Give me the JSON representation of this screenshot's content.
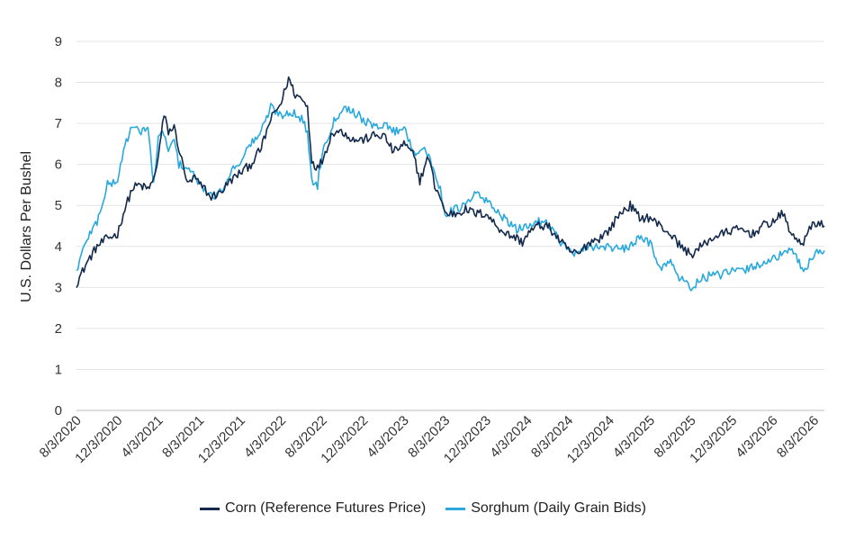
{
  "chart_data": {
    "type": "line",
    "title": "",
    "xlabel": "",
    "ylabel": "U.S. Dollars Per Bushel",
    "ylim": [
      0,
      9
    ],
    "yticks": [
      "0",
      "1",
      "2",
      "3",
      "4",
      "5",
      "6",
      "7",
      "8",
      "9"
    ],
    "xticks": [
      "8/3/2020",
      "12/3/2020",
      "4/3/2021",
      "8/3/2021",
      "12/3/2021",
      "4/3/2022",
      "8/3/2022",
      "12/3/2022",
      "4/3/2023",
      "8/3/2023",
      "12/3/2023",
      "4/3/2024",
      "8/3/2024",
      "12/3/2024",
      "4/3/2025",
      "8/3/2025",
      "12/3/2025",
      "4/3/2026",
      "8/3/2026"
    ],
    "x_range": [
      "8/3/2020",
      "9/3/2026"
    ],
    "grid": true,
    "legend_position": "bottom",
    "series": [
      {
        "name": "Corn (Reference Futures Price)",
        "color": "#13294b",
        "points": [
          [
            "8/3/2020",
            3.1
          ],
          [
            "9/3/2020",
            3.6
          ],
          [
            "10/3/2020",
            4.0
          ],
          [
            "11/3/2020",
            4.2
          ],
          [
            "12/3/2020",
            4.3
          ],
          [
            "12/20/2020",
            4.8
          ],
          [
            "1/15/2021",
            5.4
          ],
          [
            "2/3/2021",
            5.5
          ],
          [
            "3/3/2021",
            5.4
          ],
          [
            "3/20/2021",
            5.6
          ],
          [
            "4/3/2021",
            6.2
          ],
          [
            "4/20/2021",
            7.2
          ],
          [
            "5/3/2021",
            6.8
          ],
          [
            "5/20/2021",
            6.9
          ],
          [
            "6/3/2021",
            6.4
          ],
          [
            "6/20/2021",
            5.8
          ],
          [
            "7/3/2021",
            5.5
          ],
          [
            "7/20/2021",
            5.7
          ],
          [
            "8/3/2021",
            5.5
          ],
          [
            "8/20/2021",
            5.4
          ],
          [
            "9/3/2021",
            5.2
          ],
          [
            "10/3/2021",
            5.3
          ],
          [
            "11/3/2021",
            5.6
          ],
          [
            "12/3/2021",
            5.8
          ],
          [
            "1/3/2022",
            6.0
          ],
          [
            "2/3/2022",
            6.4
          ],
          [
            "3/3/2022",
            7.1
          ],
          [
            "4/3/2022",
            7.5
          ],
          [
            "4/25/2022",
            8.1
          ],
          [
            "5/15/2022",
            7.7
          ],
          [
            "6/3/2022",
            7.6
          ],
          [
            "6/20/2022",
            7.4
          ],
          [
            "7/3/2022",
            6.1
          ],
          [
            "7/20/2022",
            5.9
          ],
          [
            "8/3/2022",
            6.1
          ],
          [
            "9/3/2022",
            6.8
          ],
          [
            "10/3/2022",
            6.8
          ],
          [
            "11/3/2022",
            6.6
          ],
          [
            "12/3/2022",
            6.6
          ],
          [
            "1/3/2023",
            6.7
          ],
          [
            "2/3/2023",
            6.7
          ],
          [
            "3/3/2023",
            6.3
          ],
          [
            "4/3/2023",
            6.5
          ],
          [
            "5/3/2023",
            6.2
          ],
          [
            "5/20/2023",
            5.6
          ],
          [
            "6/15/2023",
            6.2
          ],
          [
            "7/3/2023",
            5.5
          ],
          [
            "7/20/2023",
            5.2
          ],
          [
            "8/3/2023",
            4.8
          ],
          [
            "9/3/2023",
            4.8
          ],
          [
            "10/3/2023",
            4.9
          ],
          [
            "11/3/2023",
            4.8
          ],
          [
            "12/3/2023",
            4.8
          ],
          [
            "1/3/2024",
            4.5
          ],
          [
            "2/3/2024",
            4.3
          ],
          [
            "3/3/2024",
            4.2
          ],
          [
            "3/20/2024",
            4.1
          ],
          [
            "4/3/2024",
            4.3
          ],
          [
            "5/3/2024",
            4.5
          ],
          [
            "6/3/2024",
            4.5
          ],
          [
            "7/3/2024",
            4.2
          ],
          [
            "8/3/2024",
            3.9
          ],
          [
            "9/3/2024",
            3.8
          ],
          [
            "10/3/2024",
            4.1
          ],
          [
            "11/3/2024",
            4.2
          ],
          [
            "12/3/2024",
            4.4
          ],
          [
            "1/3/2025",
            4.8
          ],
          [
            "2/3/2025",
            5.0
          ],
          [
            "3/3/2025",
            4.7
          ],
          [
            "4/3/2025",
            4.7
          ],
          [
            "5/3/2025",
            4.5
          ],
          [
            "6/3/2025",
            4.3
          ],
          [
            "7/3/2025",
            4.0
          ],
          [
            "8/3/2025",
            3.8
          ],
          [
            "9/3/2025",
            4.0
          ],
          [
            "10/3/2025",
            4.2
          ],
          [
            "11/3/2025",
            4.3
          ],
          [
            "12/3/2025",
            4.4
          ],
          [
            "1/3/2026",
            4.4
          ],
          [
            "2/3/2026",
            4.3
          ],
          [
            "3/3/2026",
            4.5
          ],
          [
            "4/3/2026",
            4.6
          ],
          [
            "5/3/2026",
            4.8
          ],
          [
            "6/3/2026",
            4.2
          ],
          [
            "7/3/2026",
            4.1
          ],
          [
            "8/3/2026",
            4.6
          ],
          [
            "9/3/2026",
            4.5
          ]
        ]
      },
      {
        "name": "Sorghum (Daily Grain Bids)",
        "color": "#29a8de",
        "points": [
          [
            "8/3/2020",
            3.4
          ],
          [
            "9/3/2020",
            4.2
          ],
          [
            "10/3/2020",
            4.6
          ],
          [
            "11/3/2020",
            5.5
          ],
          [
            "12/3/2020",
            5.6
          ],
          [
            "12/25/2020",
            6.5
          ],
          [
            "1/15/2021",
            6.9
          ],
          [
            "2/3/2021",
            6.8
          ],
          [
            "3/3/2021",
            6.9
          ],
          [
            "3/20/2021",
            5.5
          ],
          [
            "4/3/2021",
            6.6
          ],
          [
            "4/20/2021",
            6.8
          ],
          [
            "5/3/2021",
            6.3
          ],
          [
            "5/20/2021",
            6.6
          ],
          [
            "6/3/2021",
            6.0
          ],
          [
            "7/3/2021",
            5.9
          ],
          [
            "8/3/2021",
            5.5
          ],
          [
            "8/20/2021",
            5.4
          ],
          [
            "9/3/2021",
            5.2
          ],
          [
            "10/3/2021",
            5.3
          ],
          [
            "11/3/2021",
            5.8
          ],
          [
            "12/3/2021",
            6.1
          ],
          [
            "1/3/2022",
            6.5
          ],
          [
            "2/3/2022",
            6.8
          ],
          [
            "3/3/2022",
            7.4
          ],
          [
            "4/3/2022",
            7.2
          ],
          [
            "5/3/2022",
            7.3
          ],
          [
            "6/3/2022",
            7.1
          ],
          [
            "6/20/2022",
            6.8
          ],
          [
            "7/3/2022",
            5.6
          ],
          [
            "7/20/2022",
            5.5
          ],
          [
            "8/3/2022",
            6.3
          ],
          [
            "9/3/2022",
            7.0
          ],
          [
            "10/3/2022",
            7.4
          ],
          [
            "11/3/2022",
            7.3
          ],
          [
            "12/3/2022",
            7.1
          ],
          [
            "1/3/2023",
            6.9
          ],
          [
            "2/3/2023",
            7.0
          ],
          [
            "3/3/2023",
            6.8
          ],
          [
            "4/3/2023",
            6.9
          ],
          [
            "5/3/2023",
            6.3
          ],
          [
            "6/3/2023",
            6.4
          ],
          [
            "7/3/2023",
            5.8
          ],
          [
            "7/20/2023",
            5.4
          ],
          [
            "8/3/2023",
            4.8
          ],
          [
            "9/3/2023",
            4.9
          ],
          [
            "10/3/2023",
            5.0
          ],
          [
            "11/3/2023",
            5.3
          ],
          [
            "12/3/2023",
            5.1
          ],
          [
            "1/3/2024",
            4.9
          ],
          [
            "2/3/2024",
            4.6
          ],
          [
            "3/3/2024",
            4.4
          ],
          [
            "4/3/2024",
            4.5
          ],
          [
            "5/3/2024",
            4.6
          ],
          [
            "6/3/2024",
            4.6
          ],
          [
            "7/3/2024",
            4.2
          ],
          [
            "8/3/2024",
            3.9
          ],
          [
            "9/3/2024",
            3.8
          ],
          [
            "10/3/2024",
            4.0
          ],
          [
            "11/3/2024",
            4.0
          ],
          [
            "12/3/2024",
            4.0
          ],
          [
            "1/3/2025",
            3.9
          ],
          [
            "2/3/2025",
            4.0
          ],
          [
            "3/3/2025",
            4.2
          ],
          [
            "4/3/2025",
            4.1
          ],
          [
            "5/3/2025",
            3.5
          ],
          [
            "6/3/2025",
            3.6
          ],
          [
            "7/3/2025",
            3.2
          ],
          [
            "8/3/2025",
            3.0
          ],
          [
            "9/3/2025",
            3.2
          ],
          [
            "10/3/2025",
            3.3
          ],
          [
            "11/3/2025",
            3.3
          ],
          [
            "12/3/2025",
            3.4
          ],
          [
            "1/3/2026",
            3.4
          ],
          [
            "2/3/2026",
            3.5
          ],
          [
            "3/3/2026",
            3.6
          ],
          [
            "4/3/2026",
            3.7
          ],
          [
            "5/3/2026",
            3.8
          ],
          [
            "6/3/2026",
            3.9
          ],
          [
            "7/3/2026",
            3.4
          ],
          [
            "8/3/2026",
            3.8
          ],
          [
            "9/3/2026",
            3.9
          ]
        ]
      }
    ]
  }
}
